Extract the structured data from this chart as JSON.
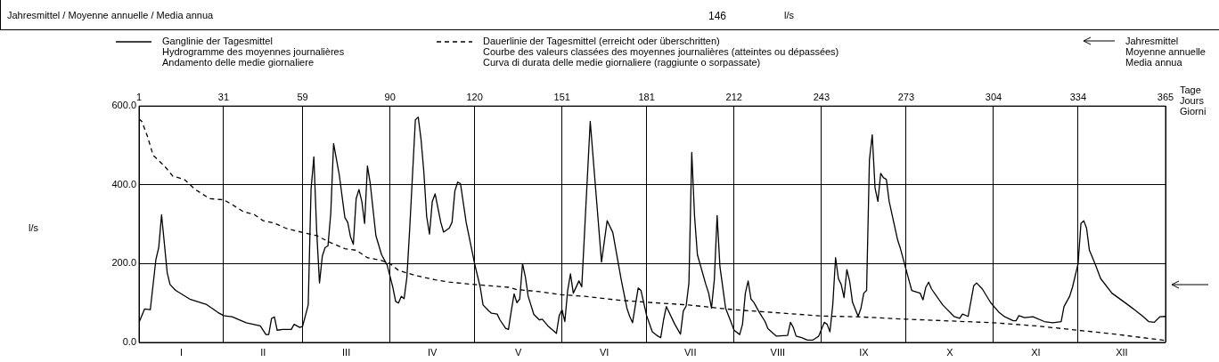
{
  "chart_data": {
    "type": "line",
    "annotations": [
      "Jahresmittel / Moyenne annuelle / Media annua",
      "146",
      "l/s",
      "l/s",
      "Jahresmittel\nMoyenne annuelle\nMedia annua",
      "I",
      "II",
      "III",
      "IV",
      "V",
      "VI",
      "VII",
      "VIII",
      "IX",
      "X",
      "XI",
      "XII"
    ],
    "x2label": "Tage\nJours\nGiorni",
    "xlim": [
      1,
      365
    ],
    "xticks": [
      1,
      31,
      59,
      90,
      120,
      151,
      181,
      212,
      243,
      273,
      304,
      334,
      365
    ],
    "ylim": [
      0,
      600
    ],
    "yticks": [
      {
        "value": 0,
        "label": "0.0"
      },
      {
        "value": 200,
        "label": "200.0"
      },
      {
        "value": 400,
        "label": "400.0"
      },
      {
        "value": 600,
        "label": "600.0"
      }
    ],
    "grid": true,
    "legend": "top",
    "marker": "none",
    "series": [
      {
        "name": "Ganglinie der Tagesmittel\nHydrogramme des moyennes journalières\nAndamento delle medie giornaliere",
        "color": "#000000",
        "line_style": "solid",
        "x": [
          1,
          3,
          5,
          7,
          8,
          9,
          11,
          12,
          14,
          19,
          25,
          29,
          31,
          34,
          39,
          44,
          46,
          47,
          48,
          49,
          50,
          52,
          55,
          56,
          58,
          59,
          61,
          62,
          63,
          64,
          65,
          66,
          67,
          68,
          69,
          70,
          72,
          74,
          75,
          76,
          77,
          78,
          79,
          80,
          81,
          82,
          83,
          85,
          87,
          89,
          91,
          92,
          93,
          94,
          95,
          96,
          97,
          99,
          100,
          101,
          102,
          103,
          104,
          105,
          106,
          108,
          109,
          111,
          112,
          113,
          114,
          115,
          117,
          120,
          122,
          123,
          125,
          126,
          128,
          129,
          131,
          132,
          133,
          134,
          135,
          136,
          137,
          138,
          139,
          141,
          143,
          144,
          146,
          149,
          150,
          151,
          152,
          153,
          154,
          155,
          157,
          158,
          161,
          165,
          167,
          169,
          172,
          174,
          175,
          176,
          178,
          179,
          181,
          183,
          185,
          186,
          187,
          188,
          191,
          193,
          194,
          195,
          196,
          197,
          198,
          199,
          202,
          203,
          204,
          205,
          206,
          207,
          209,
          211,
          212,
          214,
          215,
          216,
          217,
          218,
          219,
          221,
          223,
          224,
          227,
          231,
          232,
          233,
          234,
          236,
          238,
          240,
          242,
          244,
          245,
          246,
          247,
          248,
          249,
          250,
          251,
          252,
          253,
          254,
          256,
          257,
          258,
          259,
          260,
          261,
          262,
          263,
          264,
          265,
          266,
          267,
          270,
          271,
          273,
          275,
          278,
          279,
          280,
          281,
          282,
          286,
          290,
          292,
          293,
          295,
          297,
          298,
          300,
          303,
          306,
          308,
          311,
          312,
          313,
          315,
          318,
          322,
          325,
          328,
          329,
          331,
          332,
          334,
          335,
          336,
          337,
          338,
          340,
          342,
          346,
          351,
          354,
          357,
          359,
          361,
          363,
          365
        ],
        "values": [
          51,
          85,
          83,
          211,
          241,
          324,
          177,
          147,
          132,
          110,
          96,
          76,
          68,
          65,
          50,
          42,
          20,
          20,
          61,
          65,
          31,
          33,
          33,
          46,
          38,
          41,
          95,
          388,
          471,
          283,
          151,
          219,
          241,
          245,
          328,
          505,
          426,
          317,
          305,
          268,
          249,
          365,
          388,
          358,
          302,
          448,
          403,
          271,
          223,
          196,
          140,
          104,
          100,
          117,
          111,
          166,
          290,
          565,
          572,
          516,
          433,
          320,
          275,
          358,
          377,
          305,
          280,
          290,
          305,
          384,
          407,
          403,
          305,
          200,
          140,
          95,
          80,
          74,
          72,
          57,
          36,
          33,
          80,
          123,
          101,
          110,
          200,
          166,
          117,
          71,
          57,
          59,
          42,
          23,
          68,
          83,
          53,
          132,
          174,
          125,
          156,
          141,
          561,
          204,
          309,
          279,
          159,
          87,
          66,
          50,
          138,
          132,
          68,
          27,
          16,
          12,
          57,
          91,
          46,
          21,
          80,
          92,
          151,
          482,
          320,
          223,
          147,
          125,
          87,
          159,
          322,
          192,
          87,
          50,
          31,
          20,
          46,
          125,
          156,
          110,
          102,
          76,
          53,
          35,
          16,
          18,
          51,
          38,
          16,
          12,
          6,
          6,
          16,
          51,
          46,
          27,
          95,
          215,
          162,
          147,
          114,
          185,
          155,
          102,
          66,
          87,
          125,
          132,
          463,
          527,
          392,
          358,
          429,
          418,
          414,
          358,
          260,
          238,
          185,
          132,
          125,
          108,
          140,
          153,
          136,
          95,
          66,
          61,
          72,
          66,
          144,
          151,
          136,
          101,
          76,
          65,
          55,
          55,
          68,
          63,
          65,
          53,
          50,
          53,
          91,
          117,
          140,
          200,
          302,
          309,
          290,
          234,
          200,
          162,
          125,
          99,
          83,
          66,
          53,
          51,
          65,
          66
        ]
      },
      {
        "name": "Dauerlinie der Tagesmittel (erreicht oder überschritten)\nCourbe des valeurs classées des moyennes journalières (atteintes ou dépassées)\nCurva di durata delle medie giornaliere (raggiunte o sorpassate)",
        "color": "#000000",
        "line_style": "dashed",
        "x": [
          1,
          2,
          4,
          6,
          10,
          13,
          17,
          21,
          26,
          31,
          34,
          38,
          42,
          45,
          49,
          53,
          59,
          64,
          69,
          74,
          78,
          82,
          87,
          90,
          93,
          99,
          106,
          111,
          120,
          132,
          135,
          143,
          151,
          159,
          170,
          181,
          196,
          212,
          226,
          243,
          256,
          273,
          304,
          319,
          334,
          347,
          365
        ],
        "values": [
          567,
          561,
          523,
          475,
          448,
          422,
          414,
          388,
          365,
          362,
          350,
          332,
          324,
          309,
          303,
          290,
          279,
          271,
          253,
          238,
          234,
          215,
          208,
          200,
          183,
          170,
          159,
          153,
          147,
          140,
          134,
          129,
          121,
          117,
          108,
          102,
          95,
          83,
          76,
          67,
          65,
          59,
          50,
          42,
          31,
          21,
          5
        ]
      }
    ]
  }
}
